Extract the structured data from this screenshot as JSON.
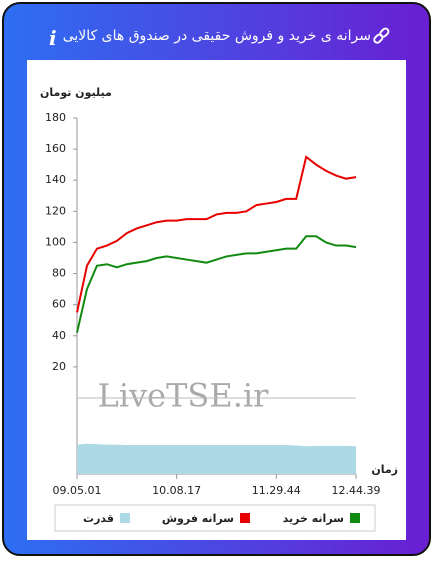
{
  "header": {
    "title": "سرانه ی خرید و فروش حقیقی در صندوق های کالایی",
    "info_icon": "i"
  },
  "chart_data": {
    "type": "line",
    "y_label": "میلیون تومان",
    "x_label": "زمان",
    "watermark": "LiveTSE.ir",
    "categories": [
      "09.05.01",
      null,
      null,
      null,
      null,
      null,
      null,
      null,
      null,
      null,
      "10.08.17",
      null,
      null,
      null,
      null,
      null,
      null,
      null,
      null,
      null,
      "11.29.44",
      null,
      null,
      null,
      null,
      null,
      null,
      null,
      "12.44.39"
    ],
    "ylim": [
      0,
      180
    ],
    "yticks": [
      20,
      40,
      60,
      80,
      100,
      120,
      140,
      160,
      180
    ],
    "series": [
      {
        "name": "سرانه خرید",
        "color": "#118a11",
        "values": [
          42,
          70,
          85,
          86,
          84,
          86,
          87,
          88,
          90,
          91,
          90,
          89,
          88,
          87,
          89,
          91,
          92,
          93,
          93,
          94,
          95,
          96,
          96,
          104,
          104,
          100,
          98,
          98,
          97
        ]
      },
      {
        "name": "سرانه فروش",
        "color": "#e80000",
        "values": [
          55,
          85,
          96,
          98,
          101,
          106,
          109,
          111,
          113,
          114,
          114,
          115,
          115,
          115,
          118,
          119,
          119,
          120,
          124,
          125,
          126,
          128,
          128,
          155,
          150,
          146,
          143,
          141,
          142
        ]
      },
      {
        "name": "قدرت",
        "color": "#add8e6",
        "axis": "y2",
        "values": [
          70,
          72,
          71,
          70,
          70,
          69,
          69,
          69,
          69,
          69,
          69,
          69,
          69,
          69,
          69,
          69,
          69,
          69,
          69,
          69,
          69,
          69,
          68,
          66,
          67,
          67,
          67,
          67,
          66
        ]
      }
    ],
    "y2lim": [
      0,
      100
    ]
  }
}
